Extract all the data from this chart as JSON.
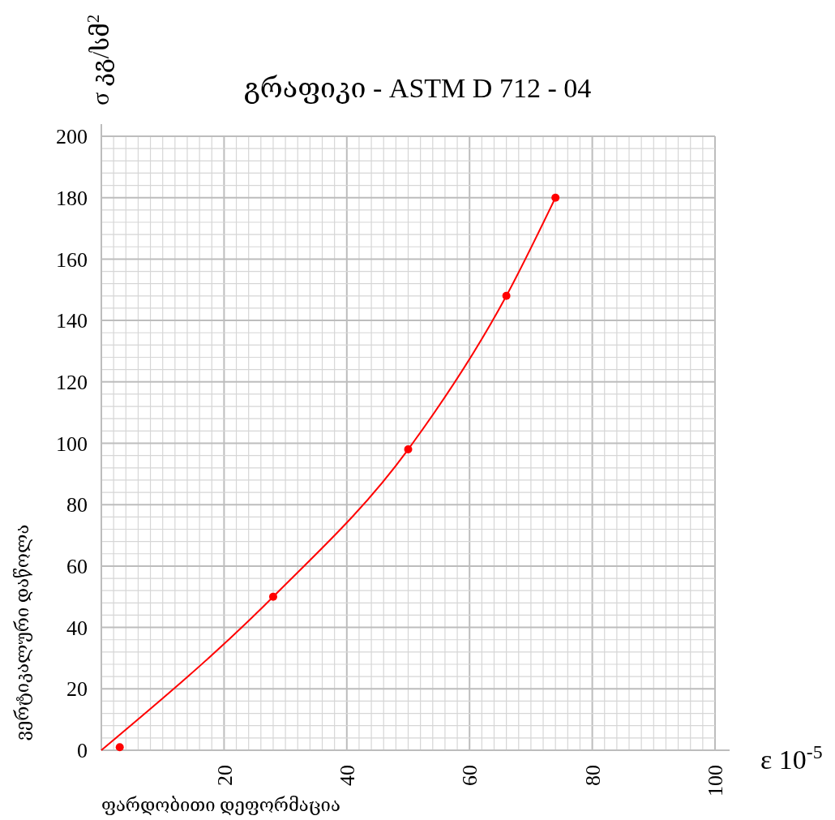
{
  "chart_data": {
    "type": "line",
    "title": "გრაფიკი  -  ASTM   D 712 - 04",
    "xlabel": "ε 10$^{-5}$",
    "ylabel": "σ კგ/სმ$^{2}$",
    "annotations": [
      "ვერტიკალური დაწოლა",
      "ფარდობითი დეფორმაცია"
    ],
    "series": [
      {
        "color": "#ff0000",
        "x": [
          0,
          28,
          50,
          66,
          74
        ],
        "values": [
          0,
          50,
          98,
          148,
          180
        ]
      },
      {
        "type": "scatter",
        "color": "#ff0000",
        "marker": "circle",
        "x": [
          3,
          28,
          50,
          66,
          74
        ],
        "values": [
          1,
          50,
          98,
          148,
          180
        ]
      }
    ],
    "xlim": [
      0,
      100
    ],
    "xticks": [
      20,
      40,
      60,
      80,
      100
    ],
    "ylim": [
      0,
      200
    ],
    "yticks": [
      0,
      20,
      40,
      60,
      80,
      100,
      120,
      140,
      160,
      180,
      200
    ],
    "grid": true
  }
}
